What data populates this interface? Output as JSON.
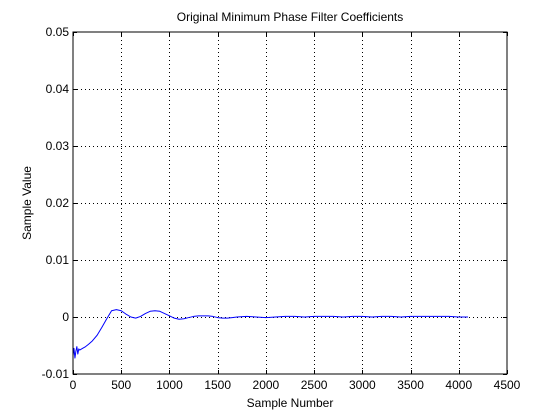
{
  "chart_data": {
    "type": "line",
    "title": "Original Minimum Phase Filter Coefficients",
    "xlabel": "Sample Number",
    "ylabel": "Sample Value",
    "xlim": [
      0,
      4500
    ],
    "ylim": [
      -0.01,
      0.05
    ],
    "xticks": [
      0,
      500,
      1000,
      1500,
      2000,
      2500,
      3000,
      3500,
      4000,
      4500
    ],
    "xtick_labels": [
      "0",
      "500",
      "1000",
      "1500",
      "2000",
      "2500",
      "3000",
      "3500",
      "4000",
      "4500"
    ],
    "yticks": [
      -0.01,
      0,
      0.01,
      0.02,
      0.03,
      0.04,
      0.05
    ],
    "ytick_labels": [
      "-0.01",
      "0",
      "0.01",
      "0.02",
      "0.03",
      "0.04",
      "0.05"
    ],
    "grid": true,
    "series": [
      {
        "color": "#0000ff",
        "x": [
          0,
          10,
          20,
          30,
          40,
          50,
          60,
          70,
          80,
          100,
          130,
          160,
          200,
          250,
          300,
          350,
          400,
          450,
          500,
          550,
          600,
          650,
          700,
          750,
          800,
          850,
          900,
          950,
          1000,
          1050,
          1100,
          1150,
          1200,
          1250,
          1300,
          1350,
          1400,
          1450,
          1500,
          1550,
          1600,
          1650,
          1700,
          1800,
          1900,
          2000,
          2100,
          2200,
          2300,
          2400,
          2500,
          2600,
          2700,
          2800,
          2900,
          3000,
          3100,
          3200,
          3300,
          3400,
          3500,
          3600,
          3700,
          3800,
          3900,
          4000,
          4096
        ],
        "y": [
          -0.0068,
          -0.0055,
          -0.0072,
          -0.006,
          -0.0052,
          -0.0065,
          -0.0056,
          -0.0058,
          -0.0057,
          -0.0055,
          -0.0052,
          -0.0048,
          -0.0042,
          -0.0032,
          -0.0018,
          -0.0003,
          0.0011,
          0.0013,
          0.0011,
          0.0005,
          0.0,
          -0.0002,
          0.0001,
          0.0006,
          0.001,
          0.0011,
          0.001,
          0.0006,
          0.0002,
          -0.0002,
          -0.0004,
          -0.0003,
          -0.0001,
          0.0001,
          0.0002,
          0.0002,
          0.0002,
          0.0001,
          -0.0001,
          -0.0002,
          -0.0002,
          -0.0001,
          0.0,
          0.0001,
          0.0,
          -0.0001,
          0.0,
          0.0001,
          0.0001,
          0.0,
          0.0001,
          0.0001,
          0.0001,
          0.0,
          0.0001,
          0.0001,
          0.0,
          0.0001,
          0.0001,
          0.0,
          0.0001,
          0.0001,
          0.0001,
          0.0001,
          0.0001,
          0.0,
          0.0
        ]
      }
    ]
  }
}
